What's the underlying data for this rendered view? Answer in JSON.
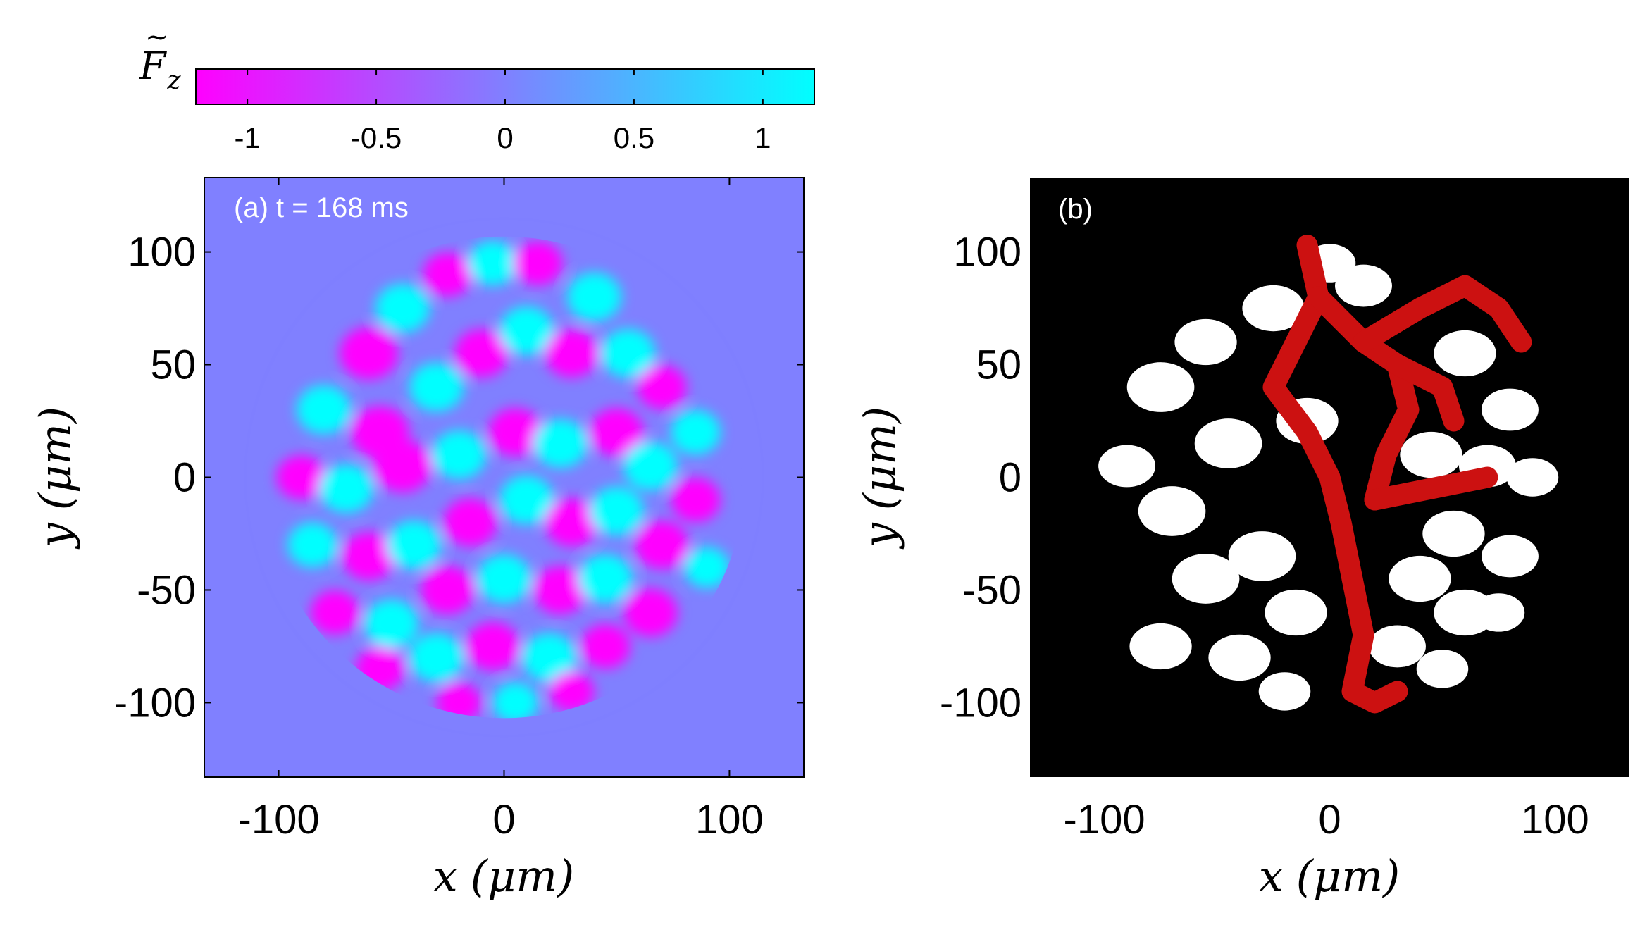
{
  "colorbar": {
    "symbol": "F",
    "subscript": "z",
    "ticks": [
      "-1",
      "-0.5",
      "0",
      "0.5",
      "1"
    ],
    "tick_values": [
      -1,
      -0.5,
      0,
      0.5,
      1
    ],
    "range": [
      -1.2,
      1.2
    ],
    "colors": {
      "negative": "#ff00ff",
      "zero": "#8080ff",
      "positive": "#00ffff"
    }
  },
  "panel_a": {
    "annotation": "(a) t = 168 ms",
    "background_color": "#8080ff",
    "xlabel": {
      "var": "x",
      "unit": "(μm)"
    },
    "ylabel": {
      "var": "y",
      "unit": "(μm)"
    },
    "xticks": [
      "-100",
      "0",
      "100"
    ],
    "yticks": [
      "100",
      "50",
      "0",
      "-50",
      "-100"
    ]
  },
  "panel_b": {
    "annotation": "(b)",
    "background_color": "#000000",
    "colors": {
      "domain": "#ffffff",
      "percolating": "#cc1111"
    },
    "xlabel": {
      "var": "x",
      "unit": "(μm)"
    },
    "ylabel": {
      "var": "y",
      "unit": "(μm)"
    },
    "xticks": [
      "-100",
      "0",
      "100"
    ],
    "yticks": [
      "100",
      "50",
      "0",
      "-50",
      "-100"
    ]
  },
  "chart_data": [
    {
      "type": "heatmap",
      "title": "(a) t = 168 ms",
      "quantity": "F_z (normalized)",
      "xlabel": "x (μm)",
      "ylabel": "y (μm)",
      "xlim": [
        -133,
        133
      ],
      "ylim": [
        -133,
        133
      ],
      "xticks": [
        -100,
        0,
        100
      ],
      "yticks": [
        -100,
        -50,
        0,
        50,
        100
      ],
      "zlim": [
        -1.2,
        1.2
      ],
      "cloud_center_um": [
        0,
        0
      ],
      "cloud_radius_um": 105,
      "blobs": [
        {
          "x": -60,
          "y": 55,
          "r": 13,
          "v": -1
        },
        {
          "x": -45,
          "y": 75,
          "r": 12,
          "v": 1
        },
        {
          "x": -25,
          "y": 90,
          "r": 11,
          "v": -1
        },
        {
          "x": -5,
          "y": 95,
          "r": 11,
          "v": 1
        },
        {
          "x": 15,
          "y": 95,
          "r": 11,
          "v": -1
        },
        {
          "x": 40,
          "y": 80,
          "r": 12,
          "v": 1
        },
        {
          "x": -80,
          "y": 30,
          "r": 12,
          "v": 1
        },
        {
          "x": -55,
          "y": 20,
          "r": 13,
          "v": -1
        },
        {
          "x": -30,
          "y": 40,
          "r": 12,
          "v": 1
        },
        {
          "x": -10,
          "y": 55,
          "r": 12,
          "v": -1
        },
        {
          "x": 10,
          "y": 65,
          "r": 12,
          "v": 1
        },
        {
          "x": 30,
          "y": 55,
          "r": 12,
          "v": -1
        },
        {
          "x": 55,
          "y": 55,
          "r": 12,
          "v": 1
        },
        {
          "x": 70,
          "y": 40,
          "r": 11,
          "v": -1
        },
        {
          "x": 85,
          "y": 20,
          "r": 11,
          "v": 1
        },
        {
          "x": -90,
          "y": 0,
          "r": 11,
          "v": -1
        },
        {
          "x": -70,
          "y": -5,
          "r": 12,
          "v": 1
        },
        {
          "x": -45,
          "y": 5,
          "r": 13,
          "v": -1
        },
        {
          "x": -20,
          "y": 10,
          "r": 12,
          "v": 1
        },
        {
          "x": 5,
          "y": 20,
          "r": 12,
          "v": -1
        },
        {
          "x": 25,
          "y": 15,
          "r": 12,
          "v": 1
        },
        {
          "x": 50,
          "y": 20,
          "r": 12,
          "v": -1
        },
        {
          "x": 65,
          "y": 5,
          "r": 12,
          "v": 1
        },
        {
          "x": 85,
          "y": -10,
          "r": 11,
          "v": -1
        },
        {
          "x": -85,
          "y": -30,
          "r": 11,
          "v": 1
        },
        {
          "x": -60,
          "y": -35,
          "r": 12,
          "v": -1
        },
        {
          "x": -40,
          "y": -30,
          "r": 12,
          "v": 1
        },
        {
          "x": -15,
          "y": -20,
          "r": 12,
          "v": -1
        },
        {
          "x": 10,
          "y": -10,
          "r": 12,
          "v": 1
        },
        {
          "x": 30,
          "y": -20,
          "r": 12,
          "v": -1
        },
        {
          "x": 50,
          "y": -15,
          "r": 12,
          "v": 1
        },
        {
          "x": 70,
          "y": -30,
          "r": 12,
          "v": -1
        },
        {
          "x": 90,
          "y": -40,
          "r": 10,
          "v": 1
        },
        {
          "x": -75,
          "y": -60,
          "r": 11,
          "v": -1
        },
        {
          "x": -50,
          "y": -65,
          "r": 12,
          "v": 1
        },
        {
          "x": -25,
          "y": -50,
          "r": 12,
          "v": -1
        },
        {
          "x": 0,
          "y": -45,
          "r": 12,
          "v": 1
        },
        {
          "x": 25,
          "y": -50,
          "r": 12,
          "v": -1
        },
        {
          "x": 45,
          "y": -45,
          "r": 12,
          "v": 1
        },
        {
          "x": 65,
          "y": -60,
          "r": 12,
          "v": -1
        },
        {
          "x": -55,
          "y": -85,
          "r": 11,
          "v": -1
        },
        {
          "x": -30,
          "y": -80,
          "r": 12,
          "v": 1
        },
        {
          "x": -5,
          "y": -75,
          "r": 12,
          "v": -1
        },
        {
          "x": 20,
          "y": -80,
          "r": 12,
          "v": 1
        },
        {
          "x": 45,
          "y": -75,
          "r": 11,
          "v": -1
        },
        {
          "x": -20,
          "y": -100,
          "r": 10,
          "v": -1
        },
        {
          "x": 5,
          "y": -100,
          "r": 10,
          "v": 1
        },
        {
          "x": 30,
          "y": -95,
          "r": 10,
          "v": -1
        }
      ]
    },
    {
      "type": "heatmap",
      "title": "(b)",
      "quantity": "domain map (white = domains, red = percolating cluster)",
      "xlabel": "x (μm)",
      "ylabel": "y (μm)",
      "xlim": [
        -133,
        133
      ],
      "ylim": [
        -133,
        133
      ],
      "xticks": [
        -100,
        0,
        100
      ],
      "yticks": [
        -100,
        -50,
        0,
        50,
        100
      ],
      "white_domains": [
        {
          "x": -75,
          "y": 40,
          "r": 13
        },
        {
          "x": -55,
          "y": 60,
          "r": 12
        },
        {
          "x": -25,
          "y": 75,
          "r": 12
        },
        {
          "x": -90,
          "y": 5,
          "r": 11
        },
        {
          "x": -70,
          "y": -15,
          "r": 13
        },
        {
          "x": -45,
          "y": 15,
          "r": 13
        },
        {
          "x": -30,
          "y": -35,
          "r": 13
        },
        {
          "x": -10,
          "y": 25,
          "r": 12
        },
        {
          "x": -55,
          "y": -45,
          "r": 13
        },
        {
          "x": -75,
          "y": -75,
          "r": 12
        },
        {
          "x": -40,
          "y": -80,
          "r": 12
        },
        {
          "x": -15,
          "y": -60,
          "r": 12
        },
        {
          "x": -20,
          "y": -95,
          "r": 10
        },
        {
          "x": 0,
          "y": 95,
          "r": 10
        },
        {
          "x": 15,
          "y": 85,
          "r": 11
        },
        {
          "x": 60,
          "y": 55,
          "r": 12
        },
        {
          "x": 80,
          "y": 30,
          "r": 11
        },
        {
          "x": 90,
          "y": 0,
          "r": 10
        },
        {
          "x": 45,
          "y": 10,
          "r": 12
        },
        {
          "x": 70,
          "y": 5,
          "r": 11
        },
        {
          "x": 55,
          "y": -25,
          "r": 12
        },
        {
          "x": 80,
          "y": -35,
          "r": 11
        },
        {
          "x": 40,
          "y": -45,
          "r": 12
        },
        {
          "x": 60,
          "y": -60,
          "r": 12
        },
        {
          "x": 30,
          "y": -75,
          "r": 11
        },
        {
          "x": 50,
          "y": -85,
          "r": 10
        },
        {
          "x": 75,
          "y": -60,
          "r": 10
        }
      ],
      "red_cluster_path_um": [
        [
          -10,
          103
        ],
        [
          -5,
          80
        ],
        [
          -15,
          60
        ],
        [
          -25,
          40
        ],
        [
          -10,
          20
        ],
        [
          0,
          0
        ],
        [
          5,
          -20
        ],
        [
          10,
          -45
        ],
        [
          15,
          -70
        ],
        [
          10,
          -95
        ],
        [
          20,
          -100
        ],
        [
          30,
          -95
        ]
      ],
      "red_cluster_branches_um": [
        [
          [
            -5,
            80
          ],
          [
            15,
            60
          ],
          [
            30,
            50
          ],
          [
            35,
            30
          ],
          [
            25,
            10
          ],
          [
            20,
            -10
          ]
        ],
        [
          [
            15,
            60
          ],
          [
            40,
            75
          ],
          [
            60,
            85
          ],
          [
            75,
            75
          ],
          [
            85,
            60
          ]
        ],
        [
          [
            30,
            50
          ],
          [
            50,
            40
          ],
          [
            55,
            25
          ]
        ],
        [
          [
            20,
            -10
          ],
          [
            45,
            -5
          ],
          [
            70,
            0
          ]
        ]
      ]
    }
  ]
}
